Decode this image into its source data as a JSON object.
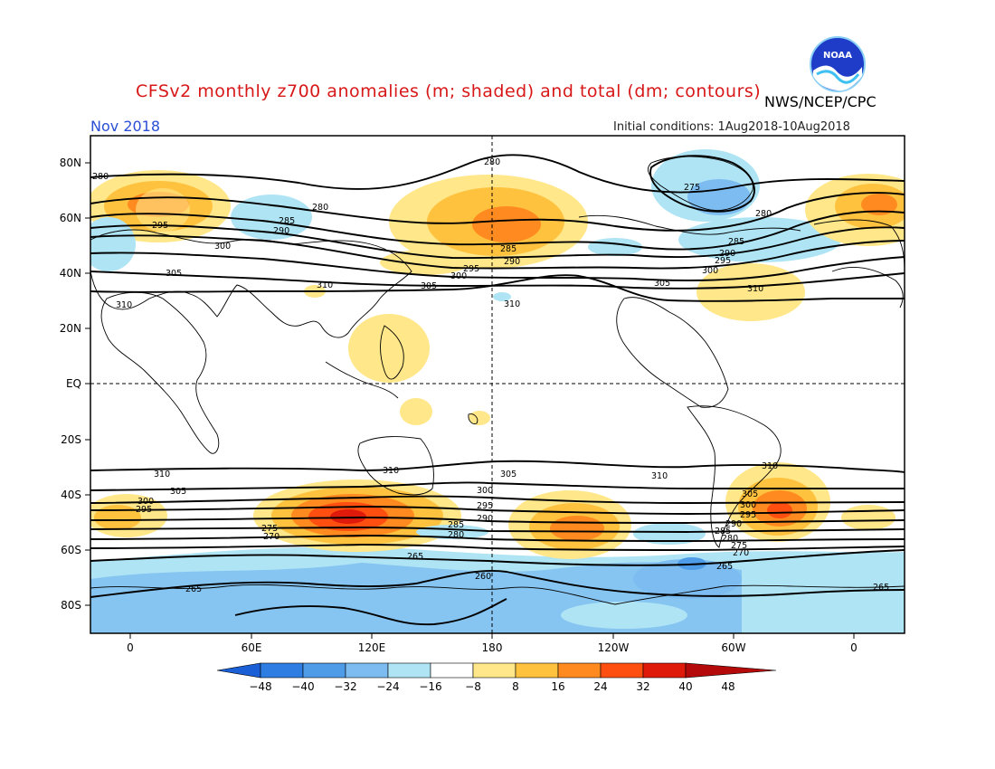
{
  "title": "CFSv2 monthly z700 anomalies (m; shaded) and total (dm; contours)",
  "agency": "NWS/NCEP/CPC",
  "logo_text": "NOAA",
  "month": "Nov 2018",
  "initial_conditions": "Initial conditions: 1Aug2018-10Aug2018",
  "colors": {
    "title": "#d81818",
    "month": "#2a4fd6",
    "scale": [
      "#1a5fd6",
      "#2e7de2",
      "#4e9be8",
      "#7cbcf0",
      "#aee4f4",
      "#ffffff",
      "#ffe78a",
      "#ffc23e",
      "#ff8a1f",
      "#ff4f10",
      "#e01a0a",
      "#b40a0a"
    ]
  },
  "lat_labels": [
    "80N",
    "60N",
    "40N",
    "20N",
    "EQ",
    "20S",
    "40S",
    "60S",
    "80S"
  ],
  "lon_labels": [
    "0",
    "60E",
    "120E",
    "180",
    "120W",
    "60W",
    "0"
  ],
  "colorbar_labels": [
    "-48",
    "-40",
    "-32",
    "-24",
    "-16",
    "-8",
    "8",
    "16",
    "24",
    "32",
    "40",
    "48"
  ],
  "contour_labels": {
    "c280": "280",
    "c285": "285",
    "c290": "290",
    "c295": "295",
    "c300": "300",
    "c305": "305",
    "c310": "310",
    "c275": "275",
    "c270": "270",
    "c265": "265",
    "c260": "260"
  }
}
